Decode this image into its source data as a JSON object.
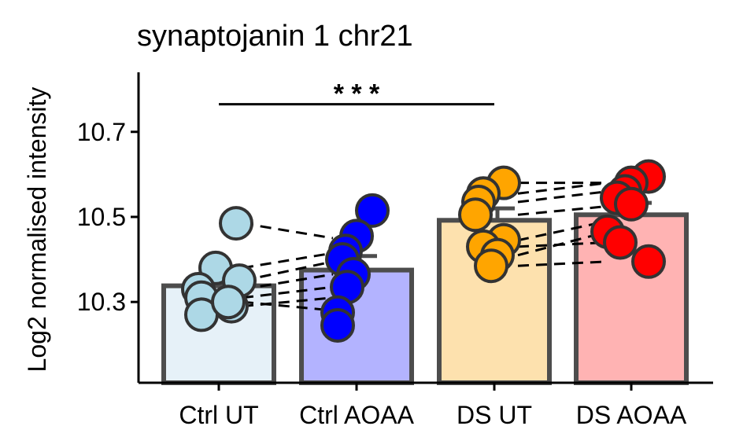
{
  "chart_data": {
    "type": "bar",
    "title": "synaptojanin 1 chr21",
    "xlabel": "",
    "ylabel": "Log2 normalised intensity",
    "ylim": [
      10.11,
      10.84
    ],
    "yticks": [
      10.3,
      10.5,
      10.7
    ],
    "ytick_labels": [
      "10.3",
      "10.5",
      "10.7"
    ],
    "grid": false,
    "legend": "none",
    "categories": [
      "Ctrl UT",
      "Ctrl AOAA",
      "DS UT",
      "DS AOAA"
    ],
    "values": [
      10.338,
      10.375,
      10.492,
      10.505
    ],
    "errors": [
      0.03,
      0.033,
      0.028,
      0.028
    ],
    "bar_colors": [
      "#e6f1f8",
      "#b3b3ff",
      "#fde1ae",
      "#ffb3b3"
    ],
    "point_colors": [
      "#add8e6",
      "#0000ff",
      "#ffa500",
      "#ff0000"
    ],
    "points": [
      [
        10.485,
        10.38,
        10.35,
        10.33,
        10.31,
        10.29,
        10.27,
        10.3
      ],
      [
        10.515,
        10.455,
        10.42,
        10.4,
        10.365,
        10.335,
        10.275,
        10.245
      ],
      [
        10.58,
        10.555,
        10.535,
        10.505,
        10.445,
        10.43,
        10.41,
        10.385
      ],
      [
        10.595,
        10.58,
        10.56,
        10.545,
        10.53,
        10.465,
        10.44,
        10.395
      ]
    ],
    "pairs": [
      {
        "from": 0,
        "to": 1,
        "y": [
          [
            10.485,
            10.45
          ],
          [
            10.38,
            10.415
          ],
          [
            10.35,
            10.395
          ],
          [
            10.33,
            10.365
          ],
          [
            10.31,
            10.335
          ],
          [
            10.29,
            10.31
          ],
          [
            10.3,
            10.28
          ]
        ]
      },
      {
        "from": 2,
        "to": 3,
        "y": [
          [
            10.58,
            10.58
          ],
          [
            10.555,
            10.58
          ],
          [
            10.535,
            10.56
          ],
          [
            10.505,
            10.525
          ],
          [
            10.445,
            10.49
          ],
          [
            10.43,
            10.44
          ],
          [
            10.41,
            10.465
          ],
          [
            10.385,
            10.395
          ]
        ]
      }
    ],
    "significance": {
      "from": 0,
      "to": 2,
      "y": 10.765,
      "label": "* * *"
    }
  }
}
